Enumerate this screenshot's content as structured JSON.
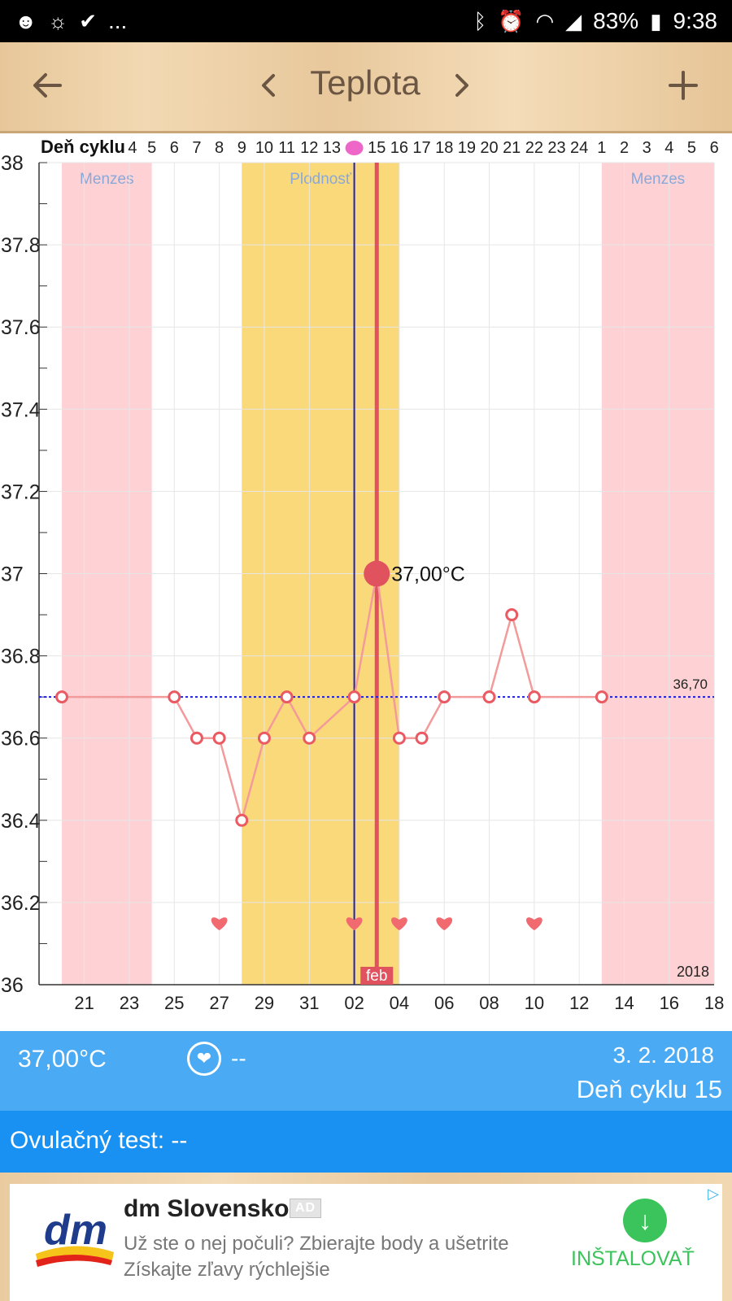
{
  "status_bar": {
    "left_icons": [
      "avatar-icon",
      "sync-icon",
      "check-icon"
    ],
    "more": "...",
    "right_icons": [
      "bluetooth-icon",
      "alarm-icon",
      "wifi-icon",
      "signal-icon",
      "battery-icon"
    ],
    "battery": "83%",
    "time": "9:38"
  },
  "app_bar": {
    "title": "Teplota",
    "back_icon": "arrow-left-icon",
    "prev_icon": "chevron-left-icon",
    "next_icon": "chevron-right-icon",
    "add_icon": "plus-icon"
  },
  "chart_data": {
    "type": "line",
    "cycle_day_label": "Deň cyklu",
    "cycle_day_ticks": [
      "4",
      "5",
      "6",
      "7",
      "8",
      "9",
      "10",
      "11",
      "12",
      "13",
      "14",
      "15",
      "16",
      "17",
      "18",
      "19",
      "20",
      "21",
      "22",
      "23",
      "24",
      "1",
      "2",
      "3",
      "4",
      "5",
      "6"
    ],
    "x_date_ticks": [
      "21",
      "23",
      "25",
      "27",
      "29",
      "31",
      "02",
      "04",
      "06",
      "08",
      "10",
      "12",
      "14",
      "16",
      "18"
    ],
    "y_ticks": [
      "38",
      "37.8",
      "37.6",
      "37.4",
      "37.2",
      "37",
      "36.8",
      "36.6",
      "36.4",
      "36.2",
      "36"
    ],
    "ylim": [
      36,
      38
    ],
    "x": [
      "Jan 20",
      "Jan 25",
      "Jan 26",
      "Jan 27",
      "Jan 28",
      "Jan 29",
      "Jan 30",
      "Jan 31",
      "Feb 02",
      "Feb 03",
      "Feb 04",
      "Feb 05",
      "Feb 06",
      "Feb 08",
      "Feb 09",
      "Feb 10",
      "Feb 13"
    ],
    "values": [
      36.7,
      36.7,
      36.6,
      36.6,
      36.4,
      36.6,
      36.7,
      36.6,
      36.7,
      37.0,
      36.6,
      36.6,
      36.7,
      36.7,
      36.9,
      36.7,
      36.7
    ],
    "selected": {
      "date": "Feb 03",
      "value": 37.0,
      "label": "37,00°C"
    },
    "coverline": {
      "value": 36.7,
      "label": "36,70"
    },
    "bands": [
      {
        "label": "Menzes",
        "from": "Jan 20",
        "to": "Jan 24",
        "color": "#fed2d4"
      },
      {
        "label": "Plodnosť",
        "from": "Jan 28",
        "to": "Feb 04",
        "color": "#fad97b"
      },
      {
        "label": "Menzes",
        "from": "Feb 13",
        "to": "Feb 18",
        "color": "#fed2d4"
      }
    ],
    "heart_days": [
      "Jan 27",
      "Feb 02",
      "Feb 04",
      "Feb 06",
      "Feb 10"
    ],
    "today_line": "Feb 02",
    "month_marker": {
      "date": "Feb 03",
      "label": "feb"
    },
    "year_label": "2018",
    "ovulation_marker_day": "14",
    "colors": {
      "line": "#f39a9a",
      "point": "#ea5a63",
      "selected": "#e0525e",
      "coverline": "#2020d0",
      "today": "#1e22b8"
    }
  },
  "info": {
    "temperature": "37,00°C",
    "heart_icon": "heart-icon",
    "heart_value": "--",
    "date": "3. 2. 2018",
    "cycle_day": "Deň cyklu 15"
  },
  "ovulation_test": {
    "text": "Ovulačný test: --"
  },
  "ad": {
    "logo": "dm-logo",
    "advertiser": "dm Slovensko",
    "badge": "AD",
    "line1": "Už ste o nej počuli? Zbierajte body a ušetrite",
    "line2": "Získajte zľavy rýchlejšie",
    "install_label": "INŠTALOVAŤ",
    "download_icon": "download-icon",
    "adchoices_icon": "adchoices-icon"
  }
}
